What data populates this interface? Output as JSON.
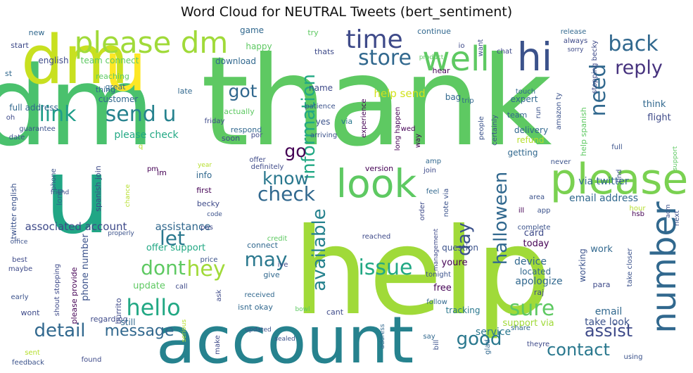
{
  "chart_data": {
    "type": "wordcloud",
    "title": "Word Cloud for NEUTRAL Tweets (bert_sentiment)",
    "colormap": "viridis",
    "background": "#ffffff",
    "words": [
      {
        "text": "thank",
        "size": 175,
        "color": "#5ec962"
      },
      {
        "text": "help",
        "size": 170,
        "color": "#a0da39"
      },
      {
        "text": "dm",
        "size": 155,
        "color": "#4ac16d"
      },
      {
        "text": "u",
        "size": 150,
        "color": "#21a685"
      },
      {
        "text": "dm",
        "size": 95,
        "color": "#c8e020"
      },
      {
        "text": "u",
        "size": 95,
        "color": "#fde725"
      },
      {
        "text": "account",
        "size": 92,
        "color": "#26828e"
      },
      {
        "text": "please",
        "size": 60,
        "color": "#7ad151"
      },
      {
        "text": "hi",
        "size": 55,
        "color": "#3b528b"
      },
      {
        "text": "look",
        "size": 55,
        "color": "#5ec962"
      },
      {
        "text": "well",
        "size": 48,
        "color": "#5ec962"
      },
      {
        "text": "number",
        "size": 48,
        "color": "#31688e"
      },
      {
        "text": "please dm",
        "size": 42,
        "color": "#a0da39"
      },
      {
        "text": "time",
        "size": 36,
        "color": "#3e4a89"
      },
      {
        "text": "back",
        "size": 30,
        "color": "#31688e"
      },
      {
        "text": "reply",
        "size": 27,
        "color": "#46327e"
      },
      {
        "text": "store",
        "size": 30,
        "color": "#31688e"
      },
      {
        "text": "need",
        "size": 30,
        "color": "#31688e"
      },
      {
        "text": "send u",
        "size": 30,
        "color": "#26828e"
      },
      {
        "text": "link",
        "size": 30,
        "color": "#1f9e89"
      },
      {
        "text": "got",
        "size": 25,
        "color": "#31688e"
      },
      {
        "text": "information",
        "size": 26,
        "color": "#22a884"
      },
      {
        "text": "know",
        "size": 25,
        "color": "#2a788e"
      },
      {
        "text": "check",
        "size": 28,
        "color": "#31688e"
      },
      {
        "text": "go",
        "size": 25,
        "color": "#440154"
      },
      {
        "text": "let",
        "size": 28,
        "color": "#2a788e"
      },
      {
        "text": "hey",
        "size": 30,
        "color": "#a0da39"
      },
      {
        "text": "dont",
        "size": 28,
        "color": "#5ec962"
      },
      {
        "text": "hello",
        "size": 32,
        "color": "#22a884"
      },
      {
        "text": "may",
        "size": 28,
        "color": "#2a788e"
      },
      {
        "text": "day",
        "size": 26,
        "color": "#3b528b"
      },
      {
        "text": "available",
        "size": 26,
        "color": "#26828e"
      },
      {
        "text": "halloween",
        "size": 26,
        "color": "#31688e"
      },
      {
        "text": "issue",
        "size": 30,
        "color": "#22a884"
      },
      {
        "text": "sure",
        "size": 30,
        "color": "#5ec962"
      },
      {
        "text": "detail",
        "size": 26,
        "color": "#31688e"
      },
      {
        "text": "message",
        "size": 22,
        "color": "#31688e"
      },
      {
        "text": "good",
        "size": 26,
        "color": "#2a788e"
      },
      {
        "text": "contact",
        "size": 24,
        "color": "#2a788e"
      },
      {
        "text": "assist",
        "size": 24,
        "color": "#3e4a89"
      },
      {
        "text": "associated account",
        "size": 15,
        "color": "#3e4a89"
      },
      {
        "text": "email address",
        "size": 14,
        "color": "#31688e"
      },
      {
        "text": "via twitter",
        "size": 14,
        "color": "#31688e"
      },
      {
        "text": "help send",
        "size": 15,
        "color": "#d2e21b"
      },
      {
        "text": "please check",
        "size": 14,
        "color": "#22a884"
      },
      {
        "text": "english",
        "size": 12,
        "color": "#3e4a89"
      },
      {
        "text": "team connect",
        "size": 12,
        "color": "#5ec962"
      },
      {
        "text": "full address",
        "size": 12,
        "color": "#31688e"
      },
      {
        "text": "customer",
        "size": 12,
        "color": "#31688e"
      },
      {
        "text": "phone number",
        "size": 13,
        "color": "#3b528b"
      },
      {
        "text": "assistance",
        "size": 15,
        "color": "#31688e"
      },
      {
        "text": "update",
        "size": 13,
        "color": "#5ec962"
      },
      {
        "text": "offer support",
        "size": 13,
        "color": "#22a884"
      },
      {
        "text": "tracking",
        "size": 12,
        "color": "#2a788e"
      },
      {
        "text": "service",
        "size": 14,
        "color": "#2a788e"
      },
      {
        "text": "support via",
        "size": 13,
        "color": "#a0da39"
      },
      {
        "text": "take look",
        "size": 14,
        "color": "#3b528b"
      },
      {
        "text": "email",
        "size": 14,
        "color": "#31688e"
      },
      {
        "text": "apologize",
        "size": 14,
        "color": "#31688e"
      },
      {
        "text": "device",
        "size": 14,
        "color": "#31688e"
      },
      {
        "text": "located",
        "size": 12,
        "color": "#31688e"
      },
      {
        "text": "today",
        "size": 13,
        "color": "#440154"
      },
      {
        "text": "card",
        "size": 13,
        "color": "#3e4a89"
      },
      {
        "text": "working",
        "size": 12,
        "color": "#3b528b"
      },
      {
        "text": "work",
        "size": 13,
        "color": "#31688e"
      },
      {
        "text": "flight",
        "size": 13,
        "color": "#3e4a89"
      },
      {
        "text": "think",
        "size": 13,
        "color": "#31688e"
      },
      {
        "text": "refund",
        "size": 12,
        "color": "#b5de2b"
      },
      {
        "text": "getting",
        "size": 12,
        "color": "#31688e"
      },
      {
        "text": "delivery",
        "size": 12,
        "color": "#31688e"
      },
      {
        "text": "expert",
        "size": 12,
        "color": "#31688e"
      },
      {
        "text": "question",
        "size": 12,
        "color": "#3b528b"
      },
      {
        "text": "free",
        "size": 13,
        "color": "#440154"
      },
      {
        "text": "youre",
        "size": 13,
        "color": "#440154"
      },
      {
        "text": "game",
        "size": 12,
        "color": "#31688e"
      },
      {
        "text": "happy",
        "size": 12,
        "color": "#5ec962"
      },
      {
        "text": "download",
        "size": 12,
        "color": "#31688e"
      },
      {
        "text": "name",
        "size": 12,
        "color": "#3e4a89"
      },
      {
        "text": "yes",
        "size": 12,
        "color": "#3b528b"
      },
      {
        "text": "actually",
        "size": 11,
        "color": "#5ec962"
      },
      {
        "text": "respond",
        "size": 11,
        "color": "#31688e"
      },
      {
        "text": "soon",
        "size": 11,
        "color": "#3e4a89"
      },
      {
        "text": "version",
        "size": 11,
        "color": "#440154"
      },
      {
        "text": "bag",
        "size": 12,
        "color": "#31688e"
      },
      {
        "text": "hear",
        "size": 11,
        "color": "#440154"
      },
      {
        "text": "via",
        "size": 11,
        "color": "#2a788e"
      },
      {
        "text": "thats",
        "size": 11,
        "color": "#3e4a89"
      },
      {
        "text": "continue",
        "size": 11,
        "color": "#31688e"
      },
      {
        "text": "try",
        "size": 11,
        "color": "#5ec962"
      },
      {
        "text": "new",
        "size": 11,
        "color": "#31688e"
      },
      {
        "text": "start",
        "size": 11,
        "color": "#3e4a89"
      },
      {
        "text": "reaching",
        "size": 11,
        "color": "#5ec962"
      },
      {
        "text": "great",
        "size": 11,
        "color": "#31688e"
      },
      {
        "text": "thing",
        "size": 11,
        "color": "#31688e"
      },
      {
        "text": "late",
        "size": 11,
        "color": "#31688e"
      },
      {
        "text": "st",
        "size": 11,
        "color": "#31688e"
      },
      {
        "text": "guarantee",
        "size": 10,
        "color": "#3b528b"
      },
      {
        "text": "date",
        "size": 10,
        "color": "#3b528b"
      },
      {
        "text": "long",
        "size": 11,
        "color": "#31688e"
      },
      {
        "text": "friday",
        "size": 10,
        "color": "#3e4a89"
      },
      {
        "text": "por",
        "size": 10,
        "color": "#3e4a89"
      },
      {
        "text": "arriving",
        "size": 10,
        "color": "#3b528b"
      },
      {
        "text": "patience",
        "size": 10,
        "color": "#3b528b"
      },
      {
        "text": "experience",
        "size": 10,
        "color": "#440154"
      },
      {
        "text": "long happen",
        "size": 10,
        "color": "#440154"
      },
      {
        "text": "wed",
        "size": 10,
        "color": "#440154"
      },
      {
        "text": "way",
        "size": 10,
        "color": "#440154"
      },
      {
        "text": "trip",
        "size": 10,
        "color": "#31688e"
      },
      {
        "text": "people",
        "size": 10,
        "color": "#3b528b"
      },
      {
        "text": "team",
        "size": 11,
        "color": "#31688e"
      },
      {
        "text": "touch",
        "size": 10,
        "color": "#31688e"
      },
      {
        "text": "release",
        "size": 10,
        "color": "#31688e"
      },
      {
        "text": "always",
        "size": 10,
        "color": "#3e4a89"
      },
      {
        "text": "sorry",
        "size": 9,
        "color": "#3e4a89"
      },
      {
        "text": "chat",
        "size": 10,
        "color": "#3e4a89"
      },
      {
        "text": "want",
        "size": 10,
        "color": "#3e4a89"
      },
      {
        "text": "io",
        "size": 10,
        "color": "#3e4a89"
      },
      {
        "text": "product",
        "size": 9,
        "color": "#5ec962"
      },
      {
        "text": "stopping becky",
        "size": 10,
        "color": "#3e4a89"
      },
      {
        "text": "help spanish",
        "size": 11,
        "color": "#5ec962"
      },
      {
        "text": "amazon ty",
        "size": 10,
        "color": "#3b528b"
      },
      {
        "text": "run",
        "size": 10,
        "color": "#3b528b"
      },
      {
        "text": "certainly",
        "size": 10,
        "color": "#3b528b"
      },
      {
        "text": "full",
        "size": 10,
        "color": "#3b528b"
      },
      {
        "text": "hsb",
        "size": 10,
        "color": "#440154"
      },
      {
        "text": "never",
        "size": 10,
        "color": "#3b528b"
      },
      {
        "text": "find",
        "size": 10,
        "color": "#3b528b"
      },
      {
        "text": "support",
        "size": 9,
        "color": "#5ec962"
      },
      {
        "text": "area",
        "size": 10,
        "color": "#3b528b"
      },
      {
        "text": "app",
        "size": 10,
        "color": "#3b528b"
      },
      {
        "text": "ill",
        "size": 10,
        "color": "#440154"
      },
      {
        "text": "acm",
        "size": 9,
        "color": "#3b528b"
      },
      {
        "text": "hour",
        "size": 10,
        "color": "#b5de2b"
      },
      {
        "text": "next",
        "size": 10,
        "color": "#3b528b"
      },
      {
        "text": "complete",
        "size": 10,
        "color": "#3b528b"
      },
      {
        "text": "take closer",
        "size": 10,
        "color": "#3b528b"
      },
      {
        "text": "raj",
        "size": 11,
        "color": "#3e4a89"
      },
      {
        "text": "para",
        "size": 11,
        "color": "#3e4a89"
      },
      {
        "text": "glad",
        "size": 10,
        "color": "#31688e"
      },
      {
        "text": "share",
        "size": 10,
        "color": "#31688e"
      },
      {
        "text": "using",
        "size": 10,
        "color": "#3b528b"
      },
      {
        "text": "theyre",
        "size": 10,
        "color": "#3e4a89"
      },
      {
        "text": "bill",
        "size": 10,
        "color": "#3b528b"
      },
      {
        "text": "address",
        "size": 9,
        "color": "#31688e"
      },
      {
        "text": "say",
        "size": 10,
        "color": "#31688e"
      },
      {
        "text": "follow",
        "size": 10,
        "color": "#31688e"
      },
      {
        "text": "management",
        "size": 9,
        "color": "#3e4a89"
      },
      {
        "text": "tonight",
        "size": 10,
        "color": "#3b528b"
      },
      {
        "text": "order",
        "size": 10,
        "color": "#3e4a89"
      },
      {
        "text": "note via",
        "size": 10,
        "color": "#3b528b"
      },
      {
        "text": "feel",
        "size": 10,
        "color": "#31688e"
      },
      {
        "text": "join",
        "size": 10,
        "color": "#3e4a89"
      },
      {
        "text": "amp",
        "size": 10,
        "color": "#31688e"
      },
      {
        "text": "definitely",
        "size": 10,
        "color": "#3e4a89"
      },
      {
        "text": "offer",
        "size": 10,
        "color": "#3e4a89"
      },
      {
        "text": "reached",
        "size": 10,
        "color": "#3e4a89"
      },
      {
        "text": "credit",
        "size": 10,
        "color": "#5ec962"
      },
      {
        "text": "connect",
        "size": 11,
        "color": "#31688e"
      },
      {
        "text": "ive",
        "size": 10,
        "color": "#3e4a89"
      },
      {
        "text": "give",
        "size": 11,
        "color": "#31688e"
      },
      {
        "text": "received",
        "size": 10,
        "color": "#31688e"
      },
      {
        "text": "isnt okay",
        "size": 11,
        "color": "#31688e"
      },
      {
        "text": "cant",
        "size": 11,
        "color": "#3e4a89"
      },
      {
        "text": "bowl",
        "size": 9,
        "color": "#5ec962"
      },
      {
        "text": "updated",
        "size": 9,
        "color": "#3b528b"
      },
      {
        "text": "sealed",
        "size": 9,
        "color": "#3b528b"
      },
      {
        "text": "make",
        "size": 10,
        "color": "#3e4a89"
      },
      {
        "text": "ask",
        "size": 10,
        "color": "#3e4a89"
      },
      {
        "text": "call",
        "size": 10,
        "color": "#3e4a89"
      },
      {
        "text": "price",
        "size": 10,
        "color": "#3b528b"
      },
      {
        "text": "pas",
        "size": 10,
        "color": "#3e4a89"
      },
      {
        "text": "becky",
        "size": 11,
        "color": "#3e4a89"
      },
      {
        "text": "code",
        "size": 9,
        "color": "#3b528b"
      },
      {
        "text": "first",
        "size": 11,
        "color": "#440154"
      },
      {
        "text": "info",
        "size": 12,
        "color": "#31688e"
      },
      {
        "text": "year",
        "size": 9,
        "color": "#b5de2b"
      },
      {
        "text": "im",
        "size": 11,
        "color": "#440154"
      },
      {
        "text": "pm",
        "size": 10,
        "color": "#440154"
      },
      {
        "text": "spanish join",
        "size": 11,
        "color": "#3e4a89"
      },
      {
        "text": "chance",
        "size": 9,
        "color": "#b5de2b"
      },
      {
        "text": "properly",
        "size": 9,
        "color": "#3b528b"
      },
      {
        "text": "burrito",
        "size": 11,
        "color": "#3e4a89"
      },
      {
        "text": "regarding",
        "size": 11,
        "color": "#3e4a89"
      },
      {
        "text": "still",
        "size": 12,
        "color": "#31688e"
      },
      {
        "text": "serious",
        "size": 9,
        "color": "#b5de2b"
      },
      {
        "text": "wont",
        "size": 11,
        "color": "#3e4a89"
      },
      {
        "text": "sent",
        "size": 10,
        "color": "#b5de2b"
      },
      {
        "text": "feedback",
        "size": 10,
        "color": "#3b528b"
      },
      {
        "text": "found",
        "size": 10,
        "color": "#3e4a89"
      },
      {
        "text": "early",
        "size": 10,
        "color": "#3b528b"
      },
      {
        "text": "maybe",
        "size": 10,
        "color": "#3e4a89"
      },
      {
        "text": "best",
        "size": 10,
        "color": "#3e4a89"
      },
      {
        "text": "office",
        "size": 9,
        "color": "#3b528b"
      },
      {
        "text": "friend",
        "size": 9,
        "color": "#3e4a89"
      },
      {
        "text": "phone",
        "size": 10,
        "color": "#3b528b"
      },
      {
        "text": "twitter english",
        "size": 11,
        "color": "#3b528b"
      },
      {
        "text": "please provide",
        "size": 11,
        "color": "#440154"
      },
      {
        "text": "shout stopping",
        "size": 10,
        "color": "#3e4a89"
      },
      {
        "text": "oh",
        "size": 10,
        "color": "#3e4a89"
      },
      {
        "text": "q",
        "size": 10,
        "color": "#b5de2b"
      }
    ]
  }
}
